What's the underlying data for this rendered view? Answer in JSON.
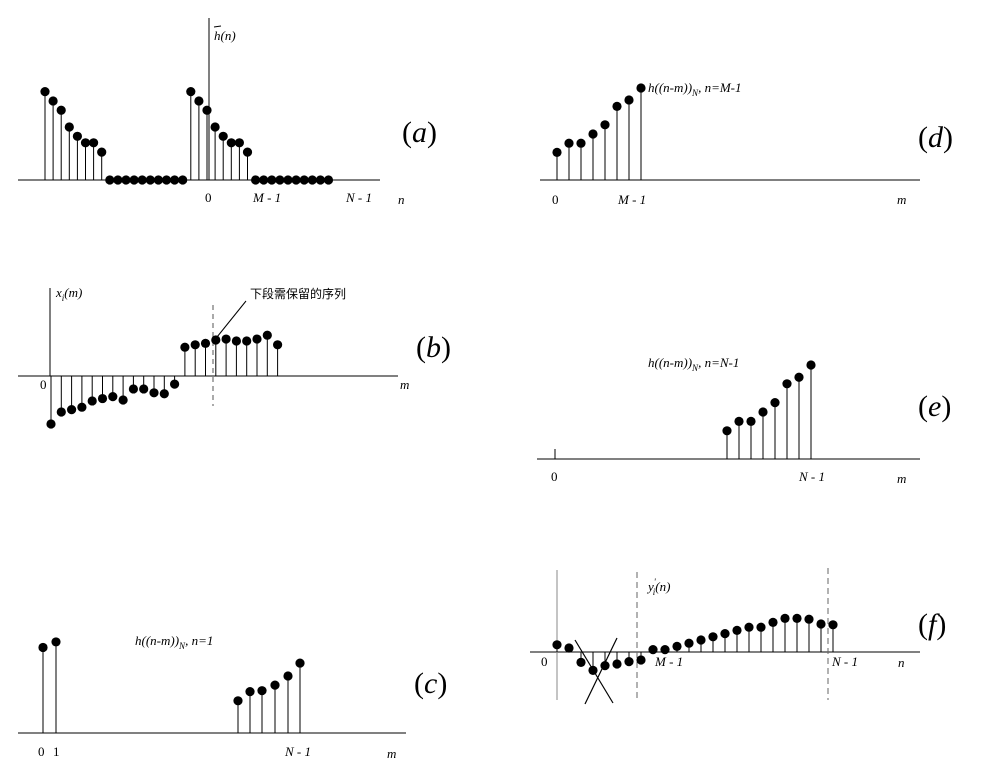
{
  "panels": {
    "a": {
      "tag": "a",
      "func_h": "h",
      "func_arg": "(n)",
      "tick_zero": "0",
      "tick_m1": "M - 1",
      "tick_n1": "N - 1",
      "axis_var": "n",
      "values": [
        0.95,
        0.85,
        0.75,
        0.57,
        0.47,
        0.4,
        0.4,
        0.3,
        0,
        0,
        0,
        0,
        0,
        0,
        0,
        0,
        0,
        0,
        0.95,
        0.85,
        0.75,
        0.57,
        0.47,
        0.4,
        0.4,
        0.3,
        0,
        0,
        0,
        0,
        0,
        0,
        0,
        0,
        0,
        0
      ]
    },
    "b": {
      "tag": "b",
      "func": "x",
      "func_sub": "i",
      "func_arg": "(m)",
      "tick_zero": "0",
      "axis_var": "m",
      "annotation": "下段需保留的序列",
      "values": [
        -1.0,
        -0.75,
        -0.7,
        -0.65,
        -0.52,
        -0.47,
        -0.43,
        -0.5,
        -0.27,
        -0.27,
        -0.35,
        -0.37,
        -0.17,
        0.6,
        0.65,
        0.68,
        0.75,
        0.77,
        0.73,
        0.73,
        0.77,
        0.85,
        0.65
      ]
    },
    "c": {
      "tag": "c",
      "func": "h((n-m))",
      "func_sub": "N",
      "func_cond": ", n=1",
      "tick_zero": "0",
      "tick_one": "1",
      "tick_n1": "N - 1",
      "axis_var": "m",
      "values": [
        0.93,
        0.99,
        0.35,
        0.45,
        0.46,
        0.52,
        0.62,
        0.76
      ]
    },
    "d": {
      "tag": "d",
      "func": "h((n-m))",
      "func_sub": "N",
      "func_cond": ", n=M-1",
      "tick_zero": "0",
      "tick_m1": "M - 1",
      "axis_var": "m",
      "values": [
        0.3,
        0.4,
        0.4,
        0.5,
        0.6,
        0.8,
        0.87,
        1.0
      ]
    },
    "e": {
      "tag": "e",
      "func": "h((n-m))",
      "func_sub": "N",
      "func_cond": ", n=N-1",
      "tick_zero": "0",
      "tick_n1": "N - 1",
      "axis_var": "m",
      "values": [
        0.3,
        0.4,
        0.4,
        0.5,
        0.6,
        0.8,
        0.87,
        1.0
      ]
    },
    "f": {
      "tag": "f",
      "func": "y",
      "func_sub": "i",
      "func_sup": "'",
      "func_arg": "(n)",
      "tick_zero": "0",
      "tick_m1": "M - 1",
      "tick_n1": "N - 1",
      "axis_var": "n",
      "values": [
        0.45,
        0.25,
        -0.65,
        -1.15,
        -0.85,
        -0.75,
        -0.6,
        -0.5,
        0.15,
        0.15,
        0.35,
        0.55,
        0.75,
        0.95,
        1.15,
        1.35,
        1.55,
        1.55,
        1.85,
        2.1,
        2.1,
        2.05,
        1.75,
        1.7
      ]
    }
  }
}
